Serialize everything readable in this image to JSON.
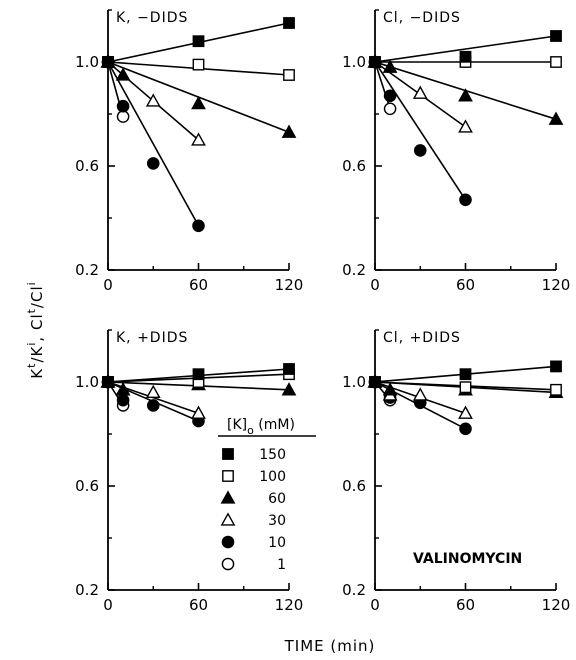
{
  "figure": {
    "ylabel_parts": {
      "k": "K",
      "k_sup_t": "t",
      "slash1": "/K",
      "k_sup_i": "i",
      "sep": ", ",
      "cl": "Cl",
      "cl_sup_t": "t",
      "slash2": "/Cl",
      "cl_sup_i": "i"
    },
    "xlabel": "TIME (min)"
  },
  "legend": {
    "title_main": "[K]",
    "title_sub": "o",
    "title_unit": " (mM)",
    "entries": [
      {
        "label": "150",
        "marker": "filled-square"
      },
      {
        "label": "100",
        "marker": "open-square"
      },
      {
        "label": "60",
        "marker": "filled-triangle"
      },
      {
        "label": "30",
        "marker": "open-triangle"
      },
      {
        "label": "10",
        "marker": "filled-circle"
      },
      {
        "label": "1",
        "marker": "open-circle"
      }
    ]
  },
  "annotation": {
    "text": "VALINOMYCIN"
  },
  "chart_data": [
    {
      "type": "scatter",
      "title": "K, −DIDS",
      "xlabel": "TIME (min)",
      "ylabel": "Kt/Ki, Clt/Cli",
      "xlim": [
        0,
        120
      ],
      "ylim": [
        0.2,
        1.2
      ],
      "xticks": [
        "0",
        "60",
        "120"
      ],
      "yticks": [
        "0.2",
        "0.6",
        "1.0"
      ],
      "series": [
        {
          "name": "150",
          "marker": "filled-square",
          "x": [
            0,
            60,
            120
          ],
          "y": [
            1.0,
            1.08,
            1.15
          ],
          "fit": [
            [
              0,
              1.0
            ],
            [
              120,
              1.15
            ]
          ]
        },
        {
          "name": "100",
          "marker": "open-square",
          "x": [
            0,
            60,
            120
          ],
          "y": [
            1.0,
            0.99,
            0.95
          ],
          "fit": [
            [
              0,
              1.0
            ],
            [
              120,
              0.95
            ]
          ]
        },
        {
          "name": "60",
          "marker": "filled-triangle",
          "x": [
            0,
            10,
            60,
            120
          ],
          "y": [
            1.0,
            0.95,
            0.84,
            0.73
          ],
          "fit": [
            [
              0,
              1.0
            ],
            [
              120,
              0.73
            ]
          ]
        },
        {
          "name": "30",
          "marker": "open-triangle",
          "x": [
            0,
            30,
            60
          ],
          "y": [
            1.0,
            0.85,
            0.7
          ],
          "fit": [
            [
              0,
              1.0
            ],
            [
              60,
              0.7
            ]
          ]
        },
        {
          "name": "10",
          "marker": "filled-circle",
          "x": [
            0,
            10,
            30,
            60
          ],
          "y": [
            1.0,
            0.83,
            0.61,
            0.37
          ],
          "fit": [
            [
              0,
              1.0
            ],
            [
              60,
              0.37
            ]
          ]
        },
        {
          "name": "1",
          "marker": "open-circle",
          "x": [
            0,
            10
          ],
          "y": [
            1.0,
            0.79
          ],
          "fit": [
            [
              0,
              1.0
            ],
            [
              10,
              0.79
            ]
          ]
        }
      ]
    },
    {
      "type": "scatter",
      "title": "Cl, −DIDS",
      "xlabel": "TIME (min)",
      "ylabel": "Kt/Ki, Clt/Cli",
      "xlim": [
        0,
        120
      ],
      "ylim": [
        0.2,
        1.2
      ],
      "xticks": [
        "0",
        "60",
        "120"
      ],
      "yticks": [
        "0.2",
        "0.6",
        "1.0"
      ],
      "series": [
        {
          "name": "150",
          "marker": "filled-square",
          "x": [
            0,
            60,
            120
          ],
          "y": [
            1.0,
            1.02,
            1.1
          ],
          "fit": [
            [
              0,
              1.0
            ],
            [
              120,
              1.1
            ]
          ]
        },
        {
          "name": "100",
          "marker": "open-square",
          "x": [
            0,
            60,
            120
          ],
          "y": [
            1.0,
            1.0,
            1.0
          ],
          "fit": [
            [
              0,
              1.0
            ],
            [
              120,
              1.0
            ]
          ]
        },
        {
          "name": "60",
          "marker": "filled-triangle",
          "x": [
            0,
            10,
            60,
            120
          ],
          "y": [
            1.0,
            0.98,
            0.87,
            0.78
          ],
          "fit": [
            [
              0,
              1.0
            ],
            [
              120,
              0.78
            ]
          ]
        },
        {
          "name": "30",
          "marker": "open-triangle",
          "x": [
            0,
            30,
            60
          ],
          "y": [
            1.0,
            0.88,
            0.75
          ],
          "fit": [
            [
              0,
              1.0
            ],
            [
              60,
              0.75
            ]
          ]
        },
        {
          "name": "10",
          "marker": "filled-circle",
          "x": [
            0,
            10,
            30,
            60
          ],
          "y": [
            1.0,
            0.87,
            0.66,
            0.47
          ],
          "fit": [
            [
              0,
              1.0
            ],
            [
              60,
              0.47
            ]
          ]
        },
        {
          "name": "1",
          "marker": "open-circle",
          "x": [
            0,
            10
          ],
          "y": [
            1.0,
            0.82
          ],
          "fit": [
            [
              0,
              1.0
            ],
            [
              10,
              0.82
            ]
          ]
        }
      ]
    },
    {
      "type": "scatter",
      "title": "K, +DIDS",
      "xlabel": "TIME (min)",
      "ylabel": "Kt/Ki, Clt/Cli",
      "xlim": [
        0,
        120
      ],
      "ylim": [
        0.2,
        1.2
      ],
      "xticks": [
        "0",
        "60",
        "120"
      ],
      "yticks": [
        "0.2",
        "0.6",
        "1.0"
      ],
      "series": [
        {
          "name": "150",
          "marker": "filled-square",
          "x": [
            0,
            60,
            120
          ],
          "y": [
            1.0,
            1.03,
            1.05
          ],
          "fit": [
            [
              0,
              1.0
            ],
            [
              120,
              1.05
            ]
          ]
        },
        {
          "name": "100",
          "marker": "open-square",
          "x": [
            0,
            60,
            120
          ],
          "y": [
            1.0,
            1.0,
            1.03
          ],
          "fit": [
            [
              0,
              1.0
            ],
            [
              120,
              1.03
            ]
          ]
        },
        {
          "name": "60",
          "marker": "filled-triangle",
          "x": [
            0,
            10,
            60,
            120
          ],
          "y": [
            1.0,
            0.97,
            0.99,
            0.97
          ],
          "fit": [
            [
              0,
              1.0
            ],
            [
              120,
              0.97
            ]
          ]
        },
        {
          "name": "30",
          "marker": "open-triangle",
          "x": [
            0,
            10,
            30,
            60
          ],
          "y": [
            1.0,
            0.97,
            0.96,
            0.88
          ],
          "fit": [
            [
              0,
              1.0
            ],
            [
              60,
              0.88
            ]
          ]
        },
        {
          "name": "10",
          "marker": "filled-circle",
          "x": [
            0,
            10,
            30,
            60
          ],
          "y": [
            1.0,
            0.93,
            0.91,
            0.85
          ],
          "fit": [
            [
              0,
              1.0
            ],
            [
              60,
              0.85
            ]
          ]
        },
        {
          "name": "1",
          "marker": "open-circle",
          "x": [
            0,
            10
          ],
          "y": [
            1.0,
            0.91
          ],
          "fit": [
            [
              0,
              1.0
            ],
            [
              10,
              0.91
            ]
          ]
        }
      ]
    },
    {
      "type": "scatter",
      "title": "Cl, +DIDS",
      "xlabel": "TIME (min)",
      "ylabel": "Kt/Ki, Clt/Cli",
      "xlim": [
        0,
        120
      ],
      "ylim": [
        0.2,
        1.2
      ],
      "xticks": [
        "0",
        "60",
        "120"
      ],
      "yticks": [
        "0.2",
        "0.6",
        "1.0"
      ],
      "series": [
        {
          "name": "150",
          "marker": "filled-square",
          "x": [
            0,
            60,
            120
          ],
          "y": [
            1.0,
            1.03,
            1.06
          ],
          "fit": [
            [
              0,
              1.0
            ],
            [
              120,
              1.06
            ]
          ]
        },
        {
          "name": "100",
          "marker": "open-square",
          "x": [
            0,
            60,
            120
          ],
          "y": [
            1.0,
            0.98,
            0.97
          ],
          "fit": [
            [
              0,
              1.0
            ],
            [
              120,
              0.97
            ]
          ]
        },
        {
          "name": "60",
          "marker": "filled-triangle",
          "x": [
            0,
            10,
            60,
            120
          ],
          "y": [
            1.0,
            0.97,
            0.97,
            0.96
          ],
          "fit": [
            [
              0,
              1.0
            ],
            [
              120,
              0.96
            ]
          ]
        },
        {
          "name": "30",
          "marker": "open-triangle",
          "x": [
            0,
            10,
            30,
            60
          ],
          "y": [
            1.0,
            0.95,
            0.95,
            0.88
          ],
          "fit": [
            [
              0,
              1.0
            ],
            [
              60,
              0.88
            ]
          ]
        },
        {
          "name": "10",
          "marker": "filled-circle",
          "x": [
            0,
            10,
            30,
            60
          ],
          "y": [
            1.0,
            0.94,
            0.92,
            0.82
          ],
          "fit": [
            [
              0,
              1.0
            ],
            [
              60,
              0.82
            ]
          ]
        },
        {
          "name": "1",
          "marker": "open-circle",
          "x": [
            0,
            10
          ],
          "y": [
            1.0,
            0.93
          ],
          "fit": [
            [
              0,
              1.0
            ],
            [
              10,
              0.93
            ]
          ]
        }
      ]
    }
  ]
}
